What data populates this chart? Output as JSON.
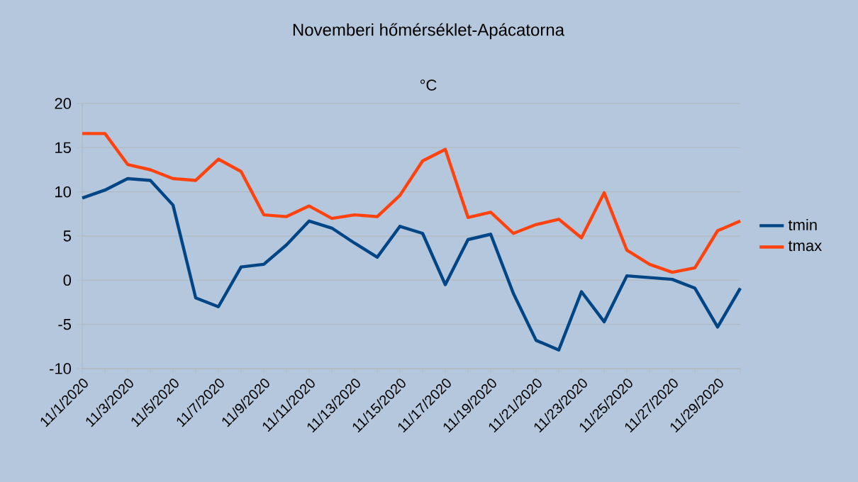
{
  "chart_data": {
    "type": "line",
    "title": "Novemberi hőmérséklet-Apácatorna",
    "subtitle": "°C",
    "categories": [
      "11/1/2020",
      null,
      "11/3/2020",
      null,
      "11/5/2020",
      null,
      "11/7/2020",
      null,
      "11/9/2020",
      null,
      "11/11/2020",
      null,
      "11/13/2020",
      null,
      "11/15/2020",
      null,
      "11/17/2020",
      null,
      "11/19/2020",
      null,
      "11/21/2020",
      null,
      "11/23/2020",
      null,
      "11/25/2020",
      null,
      "11/27/2020",
      null,
      "11/29/2020",
      null
    ],
    "series": [
      {
        "name": "tmin",
        "color": "#004586",
        "values": [
          9.3,
          10.2,
          11.5,
          11.3,
          8.5,
          -2,
          -3,
          1.5,
          1.8,
          4,
          6.7,
          5.9,
          4.2,
          2.6,
          6.1,
          5.3,
          -0.5,
          4.6,
          5.2,
          -1.5,
          -6.8,
          -7.9,
          -1.3,
          -4.7,
          0.5,
          0.3,
          0.1,
          -0.9,
          -5.3,
          -0.9
        ]
      },
      {
        "name": "tmax",
        "color": "#ff420e",
        "values": [
          16.6,
          16.6,
          13.1,
          12.5,
          11.5,
          11.3,
          13.7,
          12.3,
          7.4,
          7.2,
          8.4,
          7,
          7.4,
          7.2,
          9.6,
          13.5,
          14.8,
          7.1,
          7.7,
          5.3,
          6.3,
          6.9,
          4.8,
          9.9,
          3.4,
          1.8,
          0.9,
          1.4,
          5.6,
          6.7
        ]
      }
    ],
    "ylim": [
      -10,
      20
    ],
    "yticks": [
      -10,
      -5,
      0,
      5,
      10,
      15,
      20
    ],
    "grid": "y",
    "legend": "right",
    "marker": "none",
    "line_style": "solid"
  }
}
